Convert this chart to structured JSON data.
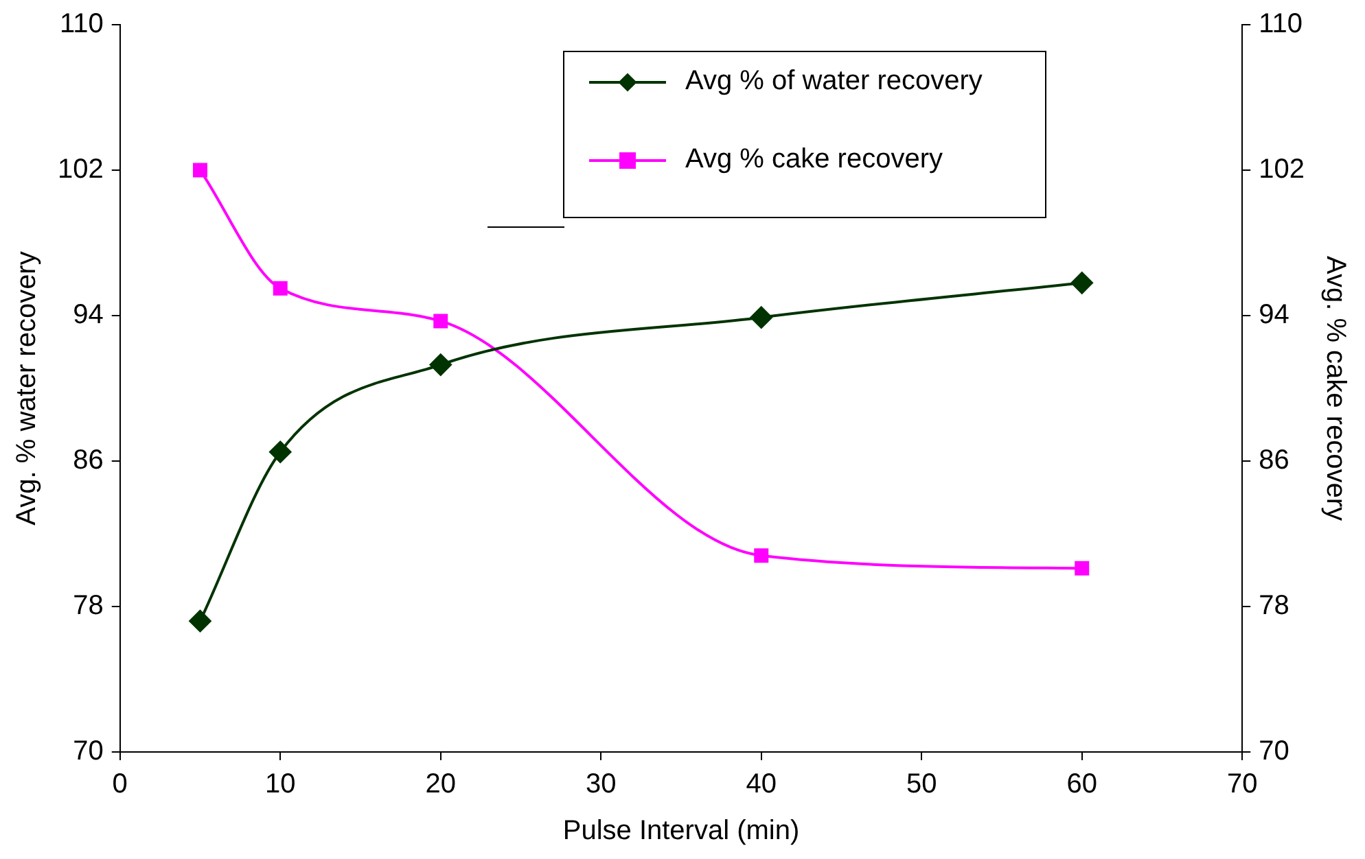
{
  "chart_data": {
    "type": "line",
    "xlabel": "Pulse Interval (min)",
    "ylabel": "Avg. % water recovery",
    "y2label": "Avg. % cake recovery",
    "x": [
      5,
      10,
      20,
      40,
      60
    ],
    "series": [
      {
        "name": "Avg % of water recovery",
        "color": "#003300",
        "marker": "diamond",
        "values": [
          77.2,
          86.5,
          91.3,
          93.9,
          95.8
        ]
      },
      {
        "name": "Avg % cake recovery",
        "color": "#ff00ff",
        "marker": "square",
        "axis": "y2",
        "values": [
          102,
          95.5,
          93.7,
          80.8,
          80.1
        ]
      }
    ],
    "xlim": [
      0,
      70
    ],
    "xticks": [
      0,
      10,
      20,
      30,
      40,
      50,
      60,
      70
    ],
    "ylim": [
      70,
      110
    ],
    "yticks": [
      70,
      78,
      86,
      94,
      102,
      110
    ],
    "y2lim": [
      70,
      110
    ],
    "y2ticks": [
      70,
      78,
      86,
      94,
      102,
      110
    ],
    "grid": false,
    "legend": "top right"
  }
}
